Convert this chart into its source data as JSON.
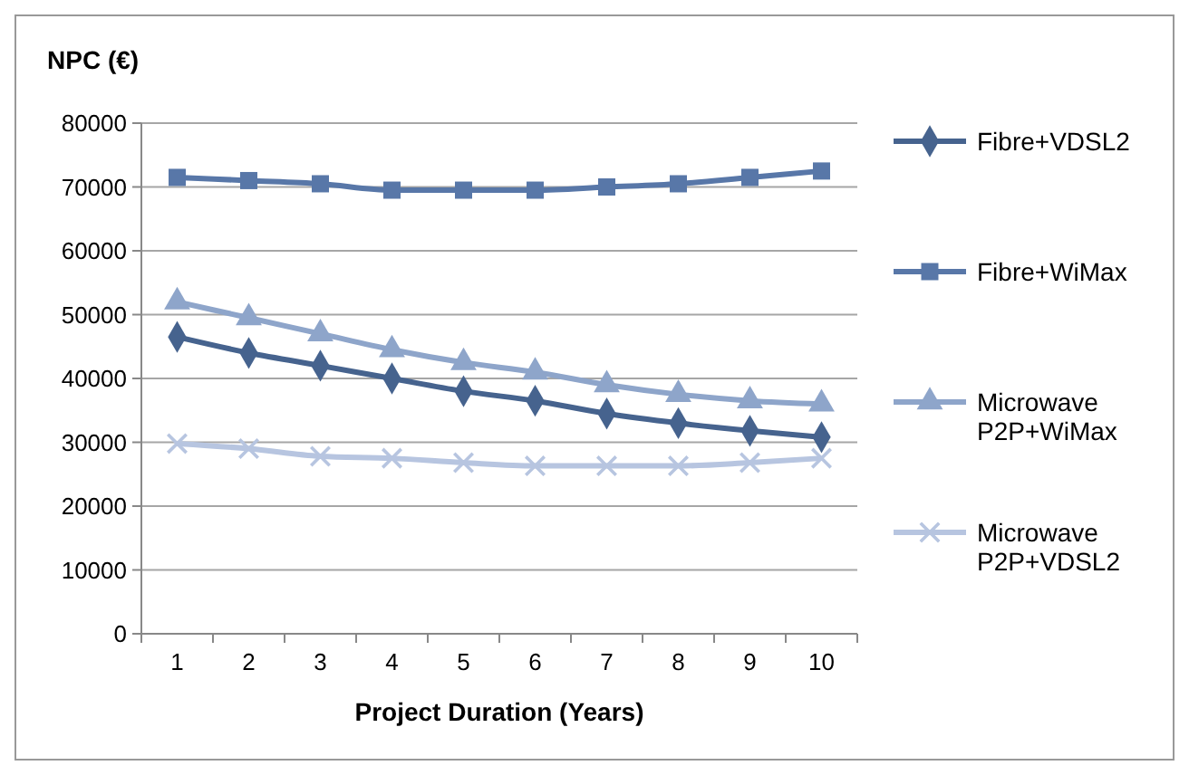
{
  "chart_data": {
    "type": "line",
    "ylabel": "NPC (€)",
    "xlabel": "Project Duration (Years)",
    "categories": [
      "1",
      "2",
      "3",
      "4",
      "5",
      "6",
      "7",
      "8",
      "9",
      "10"
    ],
    "ylim": [
      0,
      80000
    ],
    "yticks": [
      0,
      10000,
      20000,
      30000,
      40000,
      50000,
      60000,
      70000,
      80000
    ],
    "grid": "y",
    "legend": "right",
    "series": [
      {
        "name": "Fibre+VDSL2",
        "color": "#46638e",
        "marker": "diamond",
        "values": [
          46500,
          44000,
          42000,
          40000,
          38000,
          36500,
          34500,
          33000,
          31800,
          30800
        ]
      },
      {
        "name": "Fibre+WiMax",
        "color": "#5877a8",
        "marker": "square",
        "values": [
          71500,
          71000,
          70500,
          69500,
          69500,
          69500,
          70000,
          70500,
          71500,
          72500
        ]
      },
      {
        "name": "Microwave P2P+WiMax",
        "color": "#8ea5ca",
        "marker": "triangle",
        "values": [
          52000,
          49500,
          47000,
          44500,
          42500,
          41000,
          39000,
          37500,
          36500,
          36000
        ]
      },
      {
        "name": "Microwave P2P+VDSL2",
        "color": "#b7c5e0",
        "marker": "cross",
        "values": [
          29800,
          29000,
          27800,
          27500,
          26800,
          26300,
          26300,
          26300,
          26800,
          27500
        ]
      }
    ]
  }
}
